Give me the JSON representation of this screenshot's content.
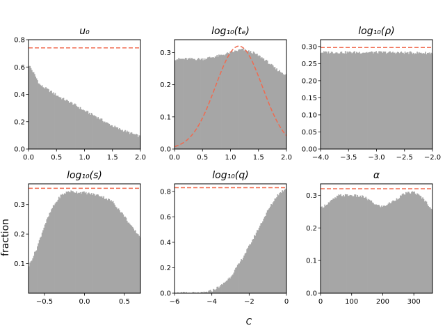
{
  "figure": {
    "ylabel": "fraction",
    "bottom_label_fragment": "C"
  },
  "chart_data": [
    {
      "type": "bar",
      "title": "u₀",
      "xlim": [
        0.0,
        2.0
      ],
      "ylim": [
        0.0,
        0.8
      ],
      "xticks": [
        "0.0",
        "0.5",
        "1.0",
        "1.5",
        "2.0"
      ],
      "yticks": [
        "0.0",
        "0.2",
        "0.4",
        "0.6",
        "0.8"
      ],
      "prior_level": 0.74,
      "profile": [
        [
          0.0,
          0.62
        ],
        [
          0.1,
          0.55
        ],
        [
          0.2,
          0.47
        ],
        [
          0.4,
          0.42
        ],
        [
          0.6,
          0.37
        ],
        [
          0.8,
          0.33
        ],
        [
          1.0,
          0.28
        ],
        [
          1.2,
          0.24
        ],
        [
          1.4,
          0.19
        ],
        [
          1.6,
          0.15
        ],
        [
          1.8,
          0.12
        ],
        [
          2.0,
          0.09
        ]
      ],
      "color": "#a6a6a6",
      "prior_color": "#f06a4f"
    },
    {
      "type": "bar",
      "title": "log₁₀(tₑ)",
      "xlim": [
        0.0,
        2.0
      ],
      "ylim": [
        0.0,
        0.34
      ],
      "xticks": [
        "0.0",
        "0.5",
        "1.0",
        "1.5",
        "2.0"
      ],
      "yticks": [
        "0.0",
        "0.1",
        "0.2",
        "0.3"
      ],
      "profile": [
        [
          0.0,
          0.28
        ],
        [
          0.2,
          0.28
        ],
        [
          0.5,
          0.28
        ],
        [
          0.8,
          0.29
        ],
        [
          1.0,
          0.3
        ],
        [
          1.2,
          0.31
        ],
        [
          1.4,
          0.3
        ],
        [
          1.6,
          0.28
        ],
        [
          1.8,
          0.25
        ],
        [
          2.0,
          0.23
        ]
      ],
      "prior_curve": {
        "center": 1.15,
        "sigma": 0.42,
        "peak": 0.32
      },
      "color": "#a6a6a6",
      "prior_color": "#f06a4f"
    },
    {
      "type": "bar",
      "title": "log₁₀(ρ)",
      "xlim": [
        -4.0,
        -2.0
      ],
      "ylim": [
        0.0,
        0.32
      ],
      "xticks": [
        "−4.0",
        "−3.5",
        "−3.0",
        "−2.5",
        "−2.0"
      ],
      "yticks": [
        "0.00",
        "0.05",
        "0.10",
        "0.15",
        "0.20",
        "0.25",
        "0.30"
      ],
      "prior_level": 0.297,
      "profile": [
        [
          -4.0,
          0.283
        ],
        [
          -3.0,
          0.283
        ],
        [
          -2.0,
          0.281
        ]
      ],
      "color": "#a6a6a6",
      "prior_color": "#f06a4f"
    },
    {
      "type": "bar",
      "title": "log₁₀(s)",
      "xlim": [
        -0.7,
        0.7
      ],
      "ylim": [
        0.0,
        0.37
      ],
      "xticks": [
        "−0.5",
        "0.0",
        "0.5"
      ],
      "yticks": [
        "0.1",
        "0.2",
        "0.3"
      ],
      "prior_level": 0.355,
      "profile": [
        [
          -0.7,
          0.09
        ],
        [
          -0.6,
          0.15
        ],
        [
          -0.5,
          0.23
        ],
        [
          -0.4,
          0.29
        ],
        [
          -0.3,
          0.33
        ],
        [
          -0.2,
          0.345
        ],
        [
          0.0,
          0.34
        ],
        [
          0.2,
          0.33
        ],
        [
          0.35,
          0.31
        ],
        [
          0.5,
          0.26
        ],
        [
          0.6,
          0.22
        ],
        [
          0.7,
          0.19
        ]
      ],
      "color": "#a6a6a6",
      "prior_color": "#f06a4f"
    },
    {
      "type": "bar",
      "title": "log₁₀(q)",
      "xlim": [
        -6.0,
        0.0
      ],
      "ylim": [
        0.0,
        0.86
      ],
      "xticks": [
        "−6",
        "−4",
        "−2",
        "0"
      ],
      "yticks": [
        "0.0",
        "0.2",
        "0.4",
        "0.6",
        "0.8"
      ],
      "prior_level": 0.83,
      "profile": [
        [
          -6.0,
          0.0
        ],
        [
          -4.5,
          0.0
        ],
        [
          -4.0,
          0.02
        ],
        [
          -3.5,
          0.06
        ],
        [
          -3.0,
          0.13
        ],
        [
          -2.5,
          0.24
        ],
        [
          -2.0,
          0.37
        ],
        [
          -1.5,
          0.51
        ],
        [
          -1.0,
          0.65
        ],
        [
          -0.5,
          0.77
        ],
        [
          0.0,
          0.83
        ]
      ],
      "color": "#a6a6a6",
      "prior_color": "#f06a4f"
    },
    {
      "type": "bar",
      "title": "α",
      "xlim": [
        0,
        360
      ],
      "ylim": [
        0.0,
        0.335
      ],
      "xticks": [
        "0",
        "100",
        "200",
        "300"
      ],
      "yticks": [
        "0.0",
        "0.1",
        "0.2",
        "0.3"
      ],
      "prior_level": 0.32,
      "profile": [
        [
          0,
          0.26
        ],
        [
          30,
          0.28
        ],
        [
          60,
          0.3
        ],
        [
          100,
          0.3
        ],
        [
          140,
          0.295
        ],
        [
          180,
          0.27
        ],
        [
          200,
          0.265
        ],
        [
          230,
          0.28
        ],
        [
          270,
          0.305
        ],
        [
          300,
          0.31
        ],
        [
          330,
          0.29
        ],
        [
          360,
          0.255
        ]
      ],
      "color": "#a6a6a6",
      "prior_color": "#f06a4f"
    }
  ]
}
